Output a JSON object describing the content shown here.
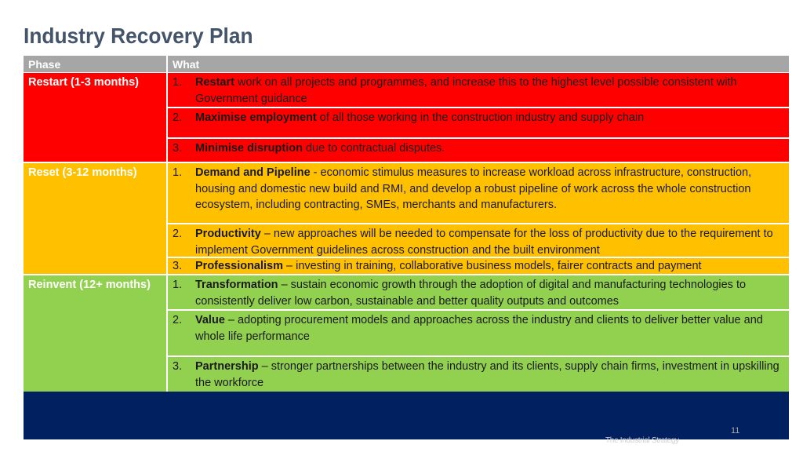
{
  "title": "Industry Recovery Plan",
  "table": {
    "headers": {
      "phase": "Phase",
      "what": "What"
    },
    "phases": [
      {
        "label": "Restart (1-3 months)",
        "color": "#ff0000",
        "items": [
          {
            "num": "1.",
            "bold": "Restart",
            "text": " work on all projects and programmes, and increase this to the highest level possible consistent with Government guidance"
          },
          {
            "num": "2.",
            "bold": "Maximise employment",
            "text": " of all those working in the construction industry and supply chain"
          },
          {
            "num": "3.",
            "bold": "Minimise disruption",
            "text": " due to contractual disputes."
          }
        ]
      },
      {
        "label": "Reset (3-12 months)",
        "color": "#ffc000",
        "items": [
          {
            "num": "1.",
            "bold": "Demand and Pipeline",
            "text": " - economic stimulus measures to increase workload across infrastructure, construction, housing and domestic new build and RMI, and develop a robust pipeline of work across the whole construction ecosystem, including contracting, SMEs, merchants and manufacturers."
          },
          {
            "num": "2.",
            "bold": "Productivity",
            "text": " – new approaches will be needed to compensate for the loss of productivity due to the requirement to implement Government guidelines across construction and the built environment"
          },
          {
            "num": "3.",
            "bold": "Professionalism",
            "text": " – investing in training, collaborative business models, fairer contracts and payment"
          }
        ]
      },
      {
        "label": "Reinvent (12+ months)",
        "color": "#92d050",
        "items": [
          {
            "num": "1.",
            "bold": "Transformation",
            "text": " – sustain economic growth through the adoption of digital and manufacturing technologies to consistently deliver low carbon, sustainable and better quality outputs and outcomes"
          },
          {
            "num": "2.",
            "bold": "Value",
            "text": " – adopting procurement models and approaches across the industry and clients to deliver better value and whole life performance"
          },
          {
            "num": "3.",
            "bold": "Partnership",
            "text": " – stronger partnerships between the industry and its clients, supply chain firms, investment in upskilling the workforce"
          }
        ]
      }
    ]
  },
  "footer": {
    "page_number": "11",
    "logo_text": "The Industrial Strategy"
  }
}
